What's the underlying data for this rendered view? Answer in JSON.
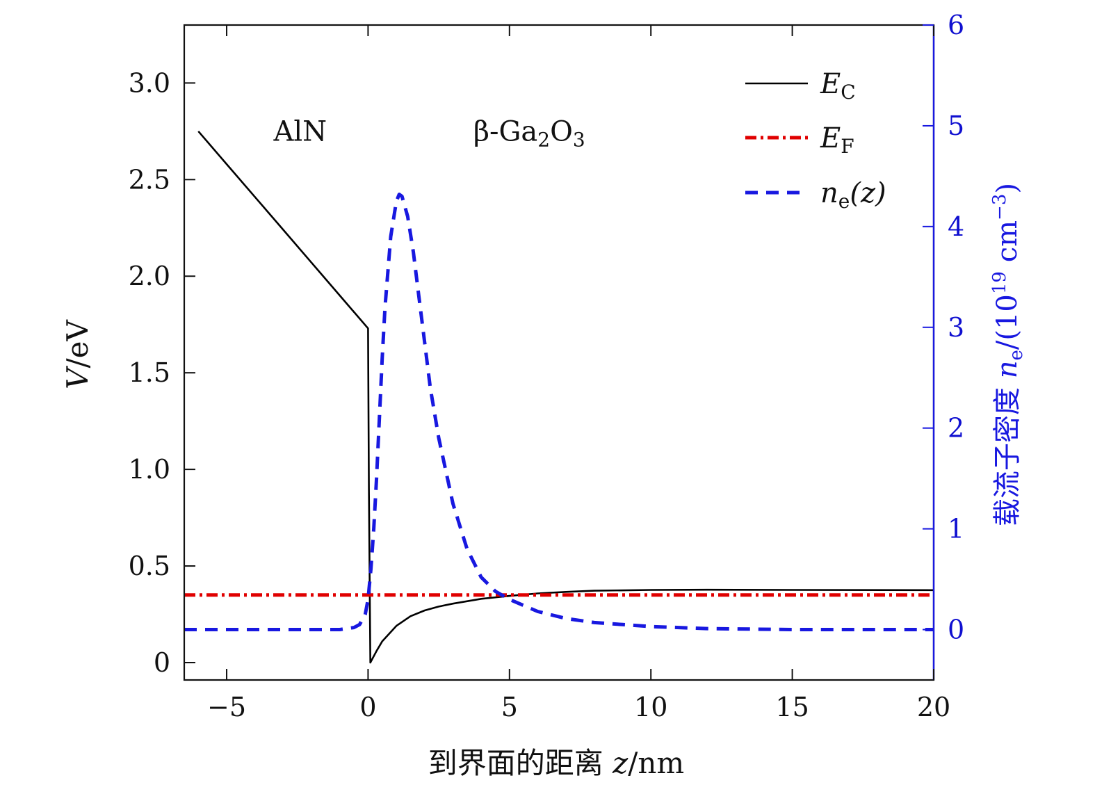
{
  "chart_data": {
    "type": "line",
    "xlabel": {
      "prefix": "到界面的距离 ",
      "var": "z",
      "unit": "/nm"
    },
    "ylabel_left": {
      "var": "V",
      "unit": "/eV"
    },
    "ylabel_right": {
      "prefix": "载流子密度 ",
      "var": "n",
      "sub": "e",
      "unit": "/(10",
      "exp": "19",
      "unit2": " cm",
      "exp2": "−3",
      "close": ")"
    },
    "xlim": [
      -6.5,
      20
    ],
    "ylim_left": [
      -0.09,
      3.3
    ],
    "ylim_right": [
      -0.5,
      6
    ],
    "x_ticks": [
      -5,
      0,
      5,
      10,
      15,
      20
    ],
    "x_tick_labels": [
      "−5",
      "0",
      "5",
      "10",
      "15",
      "20"
    ],
    "y_left_ticks": [
      0,
      0.5,
      1.0,
      1.5,
      2.0,
      2.5,
      3.0
    ],
    "y_left_tick_labels": [
      "0",
      "0.5",
      "1.0",
      "1.5",
      "2.0",
      "2.5",
      "3.0"
    ],
    "y_right_ticks": [
      0,
      1,
      2,
      3,
      4,
      5,
      6
    ],
    "y_right_tick_labels": [
      "0",
      "1",
      "2",
      "3",
      "4",
      "5",
      "6"
    ],
    "annotations": [
      {
        "text": "AlN",
        "x": -2.4,
        "y": 2.7
      },
      {
        "text_parts": [
          "β-Ga",
          "2",
          "O",
          "3"
        ],
        "x": 5.7,
        "y": 2.7
      }
    ],
    "legend_placement": "top-right",
    "series": [
      {
        "name": "E",
        "name_sub": "C",
        "axis": "left",
        "color": "#000000",
        "style": "solid",
        "x": [
          -6,
          -5,
          -4,
          -3,
          -2,
          -1,
          0,
          0.03,
          0.08,
          0.3,
          0.5,
          1,
          1.5,
          2,
          2.5,
          3,
          4,
          5,
          6,
          7,
          8,
          10,
          12,
          15,
          20
        ],
        "y": [
          2.75,
          2.58,
          2.41,
          2.24,
          2.07,
          1.9,
          1.73,
          0.9,
          0.0,
          0.06,
          0.11,
          0.19,
          0.24,
          0.27,
          0.29,
          0.305,
          0.33,
          0.345,
          0.358,
          0.366,
          0.372,
          0.376,
          0.377,
          0.376,
          0.375
        ]
      },
      {
        "name": "E",
        "name_sub": "F",
        "axis": "left",
        "color": "#e00000",
        "style": "dash-dot",
        "x": [
          -6.5,
          20
        ],
        "y": [
          0.35,
          0.35
        ]
      },
      {
        "name": "n",
        "name_sub": "e",
        "name_suffix": "(z)",
        "axis": "right",
        "color": "#1818e0",
        "style": "dashed",
        "x": [
          -6.5,
          -1,
          -0.5,
          -0.3,
          -0.1,
          0,
          0.1,
          0.2,
          0.3,
          0.4,
          0.5,
          0.6,
          0.8,
          1.0,
          1.1,
          1.2,
          1.4,
          1.6,
          1.8,
          2.0,
          2.2,
          2.5,
          3,
          3.5,
          4,
          4.5,
          5,
          6,
          7,
          8,
          9,
          10,
          12,
          15,
          20
        ],
        "y": [
          0,
          0,
          0.02,
          0.05,
          0.15,
          0.3,
          0.6,
          1.0,
          1.5,
          2.1,
          2.7,
          3.2,
          3.9,
          4.25,
          4.32,
          4.3,
          4.1,
          3.75,
          3.3,
          2.85,
          2.4,
          1.9,
          1.25,
          0.8,
          0.52,
          0.38,
          0.3,
          0.18,
          0.11,
          0.07,
          0.05,
          0.03,
          0.01,
          0.0,
          0.0
        ]
      }
    ]
  }
}
